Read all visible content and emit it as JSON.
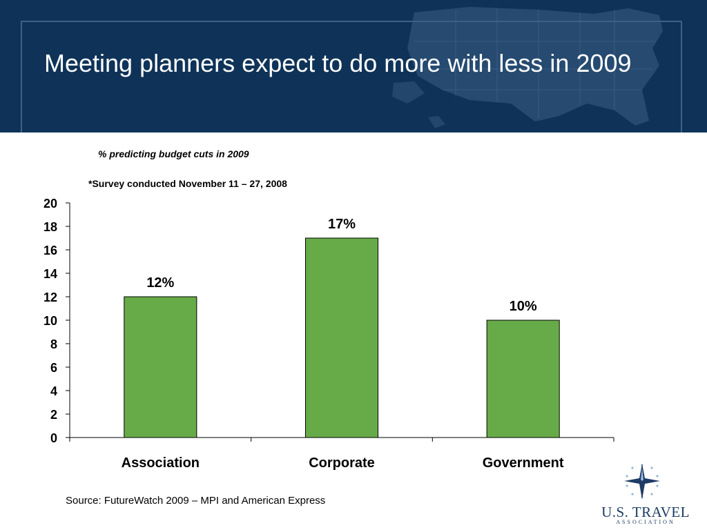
{
  "slide": {
    "title": "Meeting planners expect to do more with less in 2009",
    "subtitle": "% predicting budget cuts in 2009",
    "note": "*Survey conducted November 11 – 27, 2008",
    "source": "Source: FutureWatch 2009 – MPI and American Express"
  },
  "logo": {
    "name": "U.S. TRAVEL",
    "sub": "ASSOCIATION",
    "icon": "compass-star-icon"
  },
  "colors": {
    "header_bg": "#0f3358",
    "bar_fill": "#67ab48",
    "bar_stroke": "#000000"
  },
  "chart_data": {
    "type": "bar",
    "categories": [
      "Association",
      "Corporate",
      "Government"
    ],
    "values": [
      12,
      17,
      10
    ],
    "data_labels": [
      "12%",
      "17%",
      "10%"
    ],
    "ylim": [
      0,
      20
    ],
    "yticks": [
      0,
      2,
      4,
      6,
      8,
      10,
      12,
      14,
      16,
      18,
      20
    ],
    "title": "% predicting budget cuts in 2009",
    "xlabel": "",
    "ylabel": "",
    "grid": false,
    "legend": "none"
  }
}
